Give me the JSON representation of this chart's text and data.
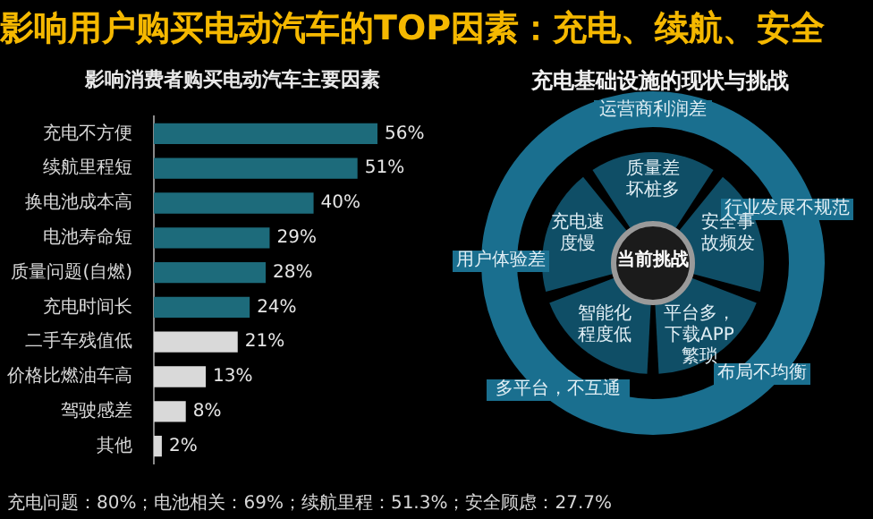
{
  "chart_data": [
    {
      "type": "bar",
      "orientation": "horizontal",
      "title": "影响用户购买电动汽车的TOP因素：充电、续航、安全",
      "subtitle": "影响消费者购买电动汽车主要因素",
      "categories": [
        "充电不方便",
        "续航里程短",
        "换电池成本高",
        "电池寿命短",
        "质量问题(自燃)",
        "充电时间长",
        "二手车残值低",
        "价格比燃油车高",
        "驾驶感差",
        "其他"
      ],
      "values": [
        56,
        51,
        40,
        29,
        28,
        24,
        21,
        13,
        8,
        2
      ],
      "colors": [
        "#1d6b7b",
        "#1d6b7b",
        "#1d6b7b",
        "#1d6b7b",
        "#1d6b7b",
        "#1d6b7b",
        "#d9d9d9",
        "#d9d9d9",
        "#d9d9d9",
        "#d9d9d9"
      ],
      "value_labels": [
        "56%",
        "51%",
        "40%",
        "29%",
        "28%",
        "24%",
        "21%",
        "13%",
        "8%",
        "2%"
      ],
      "legend": false,
      "annotations": [
        "充电问题：80%；电池相关：69%；续航里程：51.3%；安全顾虑：27.7%"
      ]
    },
    {
      "type": "other",
      "title": "充电基础设施的现状与挑战",
      "annotations": [
        "当前挑战",
        "运营商利润差",
        "行业发展不规范",
        "布局不均衡",
        "多平台，不互通",
        "用户体验差",
        "质量差坏桩多",
        "安全事故频发",
        "平台多，下载APP繁琐",
        "智能化程度低",
        "充电速度慢"
      ]
    }
  ]
}
